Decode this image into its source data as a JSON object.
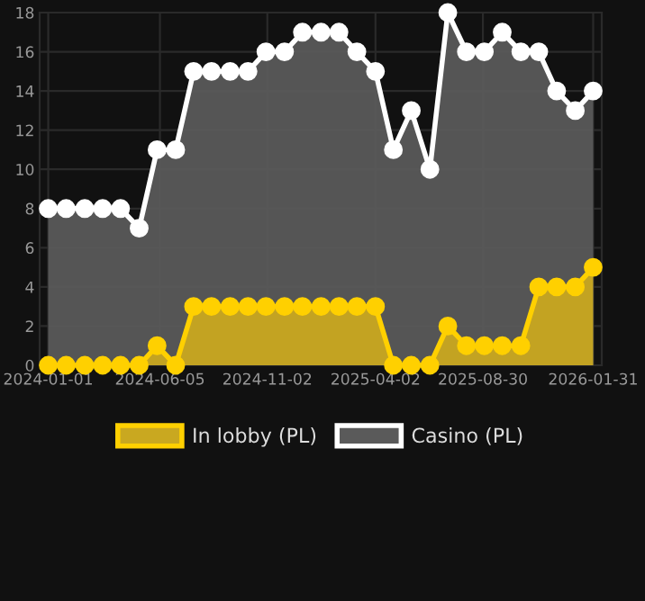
{
  "chart_data": {
    "type": "area",
    "x": [
      "2024-01-01",
      "2024-01-26",
      "2024-02-21",
      "2024-03-17",
      "2024-04-11",
      "2024-05-07",
      "2024-06-01",
      "2024-06-27",
      "2024-07-22",
      "2024-08-16",
      "2024-09-11",
      "2024-10-06",
      "2024-10-31",
      "2024-11-26",
      "2024-12-21",
      "2025-01-16",
      "2025-02-10",
      "2025-03-07",
      "2025-04-02",
      "2025-04-27",
      "2025-05-22",
      "2025-06-17",
      "2025-07-12",
      "2025-08-07",
      "2025-09-01",
      "2025-09-26",
      "2025-10-22",
      "2025-11-16",
      "2025-12-11",
      "2026-01-06",
      "2026-01-31"
    ],
    "series": [
      {
        "name": "In lobby (PL)",
        "color": "#ffd000",
        "values": [
          0,
          0,
          0,
          0,
          0,
          0,
          1,
          0,
          3,
          3,
          3,
          3,
          3,
          3,
          3,
          3,
          3,
          3,
          3,
          0,
          0,
          0,
          2,
          1,
          1,
          1,
          1,
          4,
          4,
          4,
          5
        ]
      },
      {
        "name": "Casino (PL)",
        "color": "#ffffff",
        "values": [
          8,
          8,
          8,
          8,
          8,
          7,
          11,
          11,
          15,
          15,
          15,
          15,
          16,
          16,
          17,
          17,
          17,
          16,
          15,
          11,
          13,
          10,
          18,
          16,
          16,
          17,
          16,
          16,
          14,
          13,
          14
        ]
      }
    ],
    "xlim": [
      "2023-12-20",
      "2026-02-12"
    ],
    "xticks": [
      "2024-01-01",
      "2024-06-05",
      "2024-11-02",
      "2025-04-02",
      "2025-08-30",
      "2026-01-31"
    ],
    "ylim": [
      0,
      18
    ],
    "yticks": [
      0,
      2,
      4,
      6,
      8,
      10,
      12,
      14,
      16,
      18
    ],
    "grid": true,
    "legend": "bottom",
    "marker": "circle",
    "line_style": "solid"
  }
}
